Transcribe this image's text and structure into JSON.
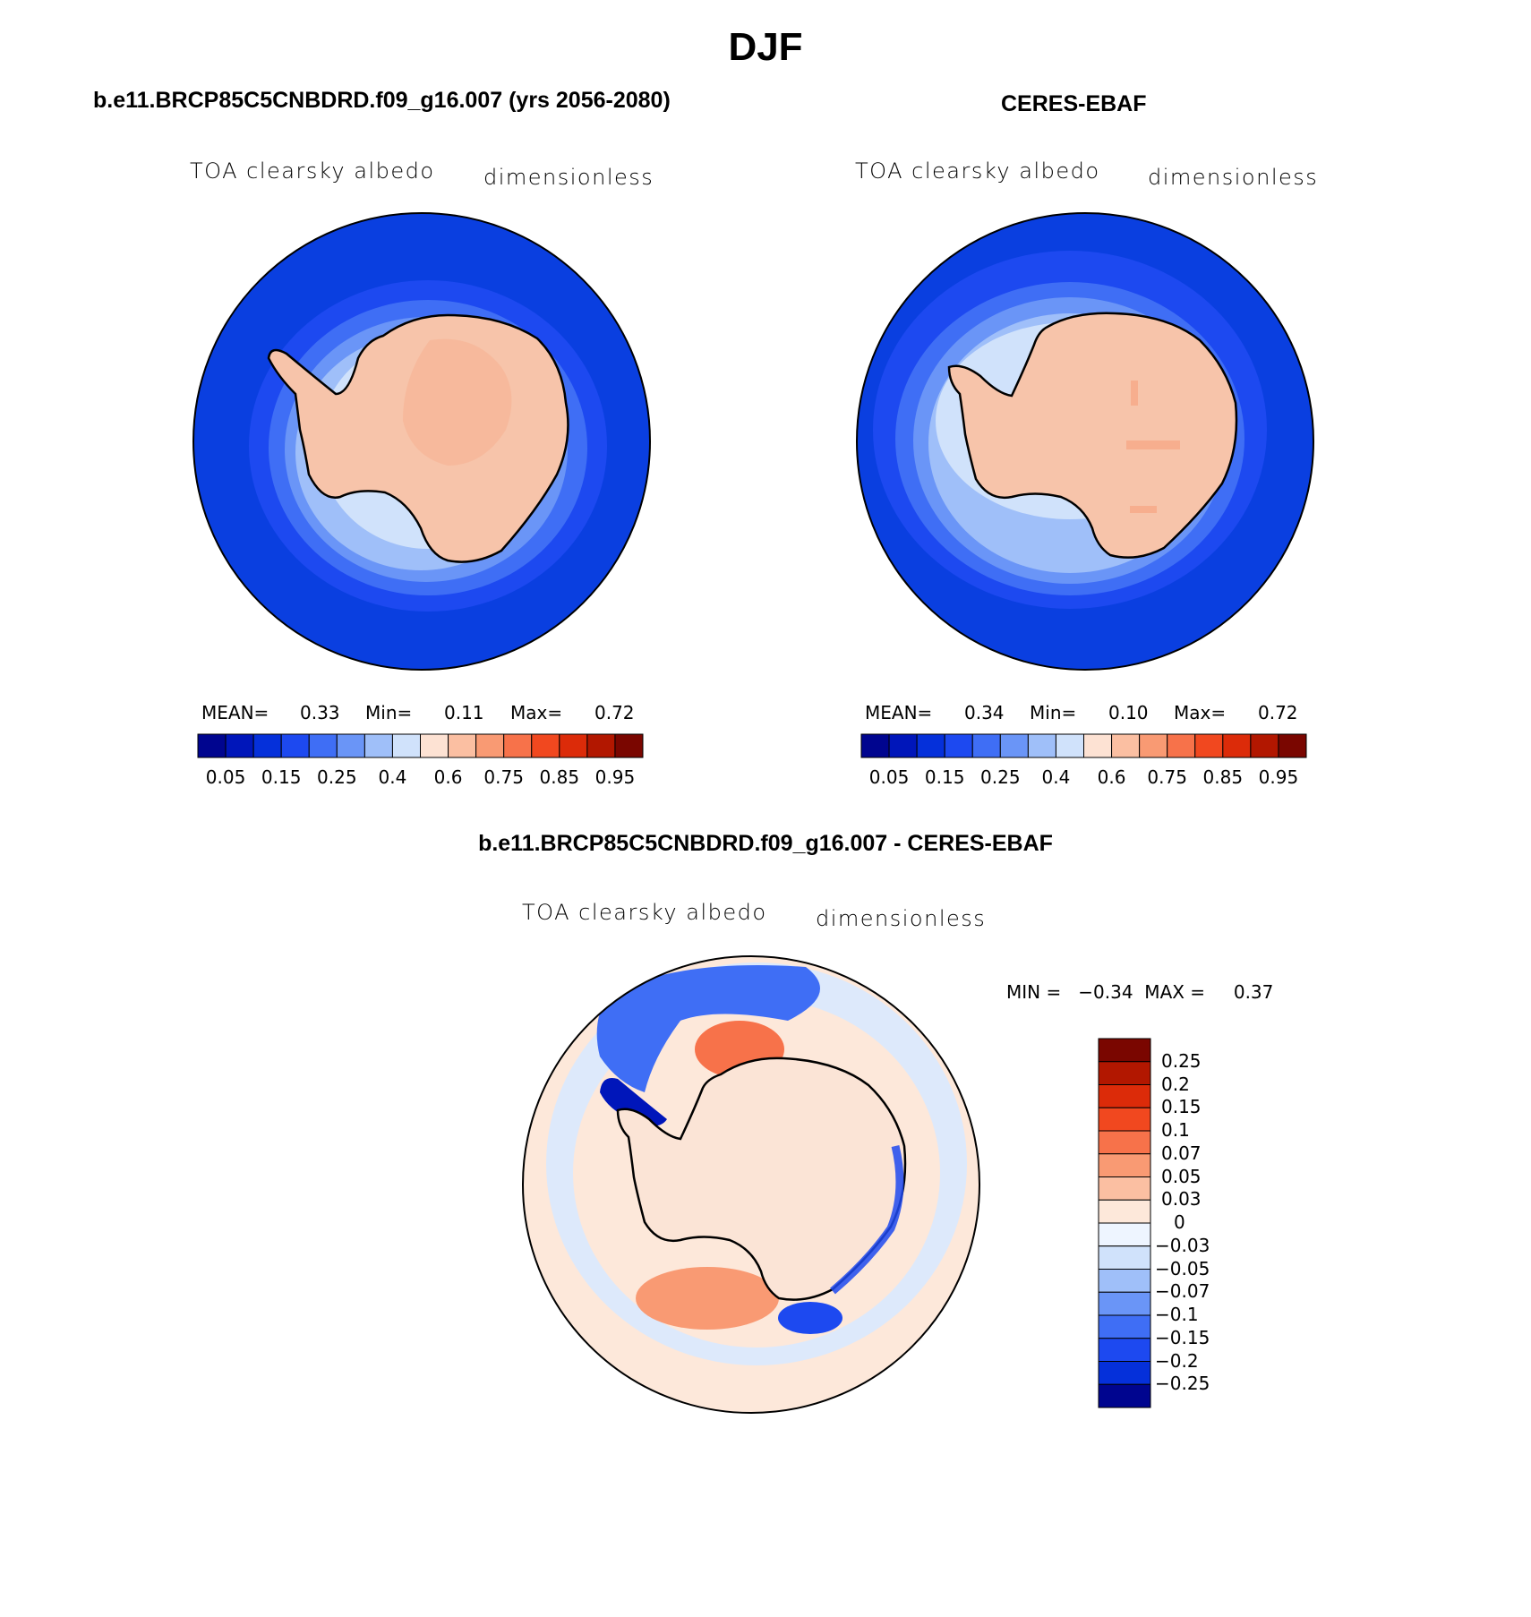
{
  "title": "DJF",
  "colors": {
    "ocean_dark": "#0a3fe0",
    "land": "#f7c4aa",
    "outline": "#000000",
    "scale17": [
      "#00058f",
      "#0016ba",
      "#0530da",
      "#1d49f0",
      "#3f6ef5",
      "#6a95f7",
      "#9fbff9",
      "#d0e2fb",
      "#fde2d3",
      "#fbbfa2",
      "#f99a73",
      "#f7724a",
      "#f1481f",
      "#dc2b09",
      "#b21700",
      "#7a0600"
    ],
    "diff_scale": [
      "#00058f",
      "#0016ba",
      "#0530da",
      "#1d49f0",
      "#3f6ef5",
      "#6a95f7",
      "#9fbff9",
      "#d0e2fb",
      "#eef5ff",
      "#fde8da",
      "#fbbfa2",
      "#f99a73",
      "#f7724a",
      "#f1481f",
      "#dc2b09",
      "#b21700",
      "#7a0600"
    ]
  },
  "panels": [
    {
      "title": "b.e11.BRCP85C5CNBDRD.f09_g16.007 (yrs 2056-2080)",
      "var_label": "TOA clearsky albedo",
      "units": "dimensionless",
      "mean_label": "MEAN=",
      "mean_value": "0.33",
      "min_label": "Min=",
      "min_value": "0.11",
      "max_label": "Max=",
      "max_value": "0.72"
    },
    {
      "title": "CERES-EBAF",
      "var_label": "TOA clearsky albedo",
      "units": "dimensionless",
      "mean_label": "MEAN=",
      "mean_value": "0.34",
      "min_label": "Min=",
      "min_value": "0.10",
      "max_label": "Max=",
      "max_value": "0.72"
    }
  ],
  "diff_panel": {
    "title": "b.e11.BRCP85C5CNBDRD.f09_g16.007 - CERES-EBAF",
    "var_label": "TOA clearsky albedo",
    "units": "dimensionless",
    "minmax_text": "MIN =   −0.34  MAX =     0.37"
  },
  "chart_data": [
    {
      "type": "heatmap",
      "projection": "south-polar-stereographic",
      "title": "b.e11.BRCP85C5CNBDRD.f09_g16.007 (yrs 2056-2080)",
      "variable": "TOA clearsky albedo",
      "units": "dimensionless",
      "mean": 0.33,
      "min": 0.11,
      "max": 0.72,
      "colorbar_ticks": [
        "0.05",
        "0.15",
        "0.25",
        "0.4",
        "0.6",
        "0.75",
        "0.85",
        "0.95"
      ],
      "colorbar_levels": [
        0.05,
        0.1,
        0.15,
        0.2,
        0.25,
        0.3,
        0.4,
        0.5,
        0.6,
        0.7,
        0.75,
        0.8,
        0.85,
        0.9,
        0.95
      ]
    },
    {
      "type": "heatmap",
      "projection": "south-polar-stereographic",
      "title": "CERES-EBAF",
      "variable": "TOA clearsky albedo",
      "units": "dimensionless",
      "mean": 0.34,
      "min": 0.1,
      "max": 0.72,
      "colorbar_ticks": [
        "0.05",
        "0.15",
        "0.25",
        "0.4",
        "0.6",
        "0.75",
        "0.85",
        "0.95"
      ],
      "colorbar_levels": [
        0.05,
        0.1,
        0.15,
        0.2,
        0.25,
        0.3,
        0.4,
        0.5,
        0.6,
        0.7,
        0.75,
        0.8,
        0.85,
        0.9,
        0.95
      ]
    },
    {
      "type": "heatmap",
      "projection": "south-polar-stereographic",
      "title": "b.e11.BRCP85C5CNBDRD.f09_g16.007 - CERES-EBAF",
      "variable": "TOA clearsky albedo",
      "units": "dimensionless",
      "min": -0.34,
      "max": 0.37,
      "colorbar_ticks": [
        "0.25",
        "0.2",
        "0.15",
        "0.1",
        "0.07",
        "0.05",
        "0.03",
        "0",
        "−0.03",
        "−0.05",
        "−0.07",
        "−0.1",
        "−0.15",
        "−0.2",
        "−0.25"
      ]
    }
  ]
}
